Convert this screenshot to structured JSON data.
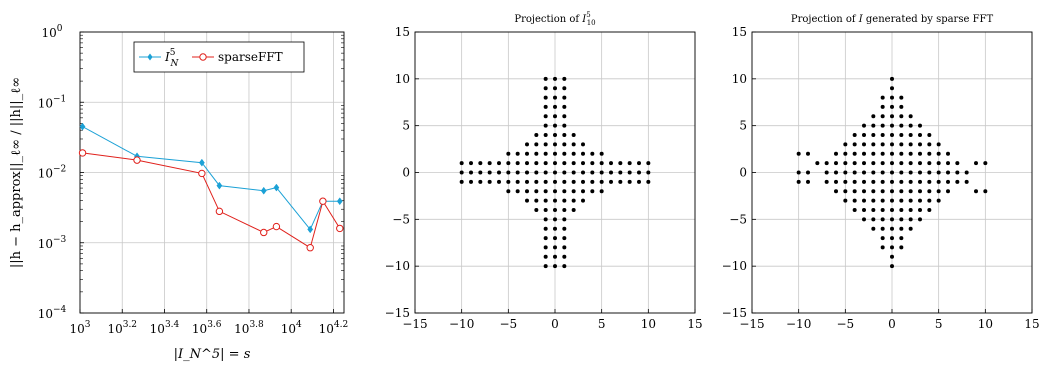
{
  "chart_data": [
    {
      "type": "line",
      "title": "",
      "xlabel": "|I_N^5| = s",
      "ylabel": "||h − h_approx||_ℓ∞ / ||h||_ℓ∞",
      "xscale": "log",
      "yscale": "log",
      "xlim": [
        1000,
        17783
      ],
      "ylim": [
        0.0001,
        1
      ],
      "xticks": [
        {
          "value": 1000,
          "base": "10",
          "exp": "3"
        },
        {
          "value": 1585,
          "base": "10",
          "exp": "3.2"
        },
        {
          "value": 2512,
          "base": "10",
          "exp": "3.4"
        },
        {
          "value": 3981,
          "base": "10",
          "exp": "3.6"
        },
        {
          "value": 6310,
          "base": "10",
          "exp": "3.8"
        },
        {
          "value": 10000,
          "base": "10",
          "exp": "4"
        },
        {
          "value": 15849,
          "base": "10",
          "exp": "4.2"
        }
      ],
      "yticks": [
        {
          "value": 0.0001,
          "base": "10",
          "exp": "−4"
        },
        {
          "value": 0.001,
          "base": "10",
          "exp": "−3"
        },
        {
          "value": 0.01,
          "base": "10",
          "exp": "−2"
        },
        {
          "value": 0.1,
          "base": "10",
          "exp": "−1"
        },
        {
          "value": 1,
          "base": "10",
          "exp": "0"
        }
      ],
      "grid": true,
      "legend_position": "top",
      "series": [
        {
          "name": "I_N^5",
          "color": "#1ba1d6",
          "marker": "diamond",
          "x": [
            1028,
            1862,
            3776,
            4571,
            7413,
            8511,
            12303,
            14125,
            16982
          ],
          "y": [
            0.045,
            0.017,
            0.0138,
            0.0065,
            0.0055,
            0.0061,
            0.00155,
            0.0039,
            0.0039
          ]
        },
        {
          "name": "sparseFFT",
          "color": "#e0201b",
          "marker": "circle",
          "x": [
            1028,
            1862,
            3776,
            4571,
            7413,
            8511,
            12303,
            14125,
            16982
          ],
          "y": [
            0.019,
            0.015,
            0.0097,
            0.0028,
            0.0014,
            0.0017,
            0.00085,
            0.0039,
            0.0016
          ]
        }
      ]
    },
    {
      "type": "scatter",
      "title": "Projection of I_10^5",
      "xlim": [
        -15,
        15
      ],
      "ylim": [
        -15,
        15
      ],
      "xticks": [
        -15,
        -10,
        -5,
        0,
        5,
        10,
        15
      ],
      "yticks": [
        -15,
        -10,
        -5,
        0,
        5,
        10,
        15
      ],
      "grid": true,
      "x_ranges_by_y": [
        {
          "y": [
            -10,
            -3
          ],
          "x": [
            -1,
            1
          ]
        },
        {
          "y": [
            -2,
            -2
          ],
          "x": [
            -5,
            5
          ]
        },
        {
          "y": [
            -1,
            1
          ],
          "x": [
            -10,
            10
          ]
        },
        {
          "y": [
            2,
            2
          ],
          "x": [
            -5,
            5
          ]
        },
        {
          "y": [
            3,
            10
          ],
          "x": [
            -1,
            1
          ]
        },
        {
          "y": [
            -4,
            4
          ],
          "x": [
            -3,
            3
          ],
          "note": "fill core diamond"
        }
      ]
    },
    {
      "type": "scatter",
      "title": "Projection of I generated by sparse FFT",
      "xlim": [
        -15,
        15
      ],
      "ylim": [
        -15,
        15
      ],
      "xticks": [
        -15,
        -10,
        -5,
        0,
        5,
        10,
        15
      ],
      "yticks": [
        -15,
        -10,
        -5,
        0,
        5,
        10,
        15
      ],
      "grid": true,
      "rows": [
        {
          "y": 10,
          "x": [
            0
          ]
        },
        {
          "y": 9,
          "x": [
            0
          ]
        },
        {
          "y": 8,
          "x": [
            -1,
            0,
            1
          ]
        },
        {
          "y": 7,
          "x": [
            -1,
            0,
            1
          ]
        },
        {
          "y": 6,
          "x": [
            -2,
            -1,
            0,
            1,
            2
          ]
        },
        {
          "y": 5,
          "x": [
            -3,
            -2,
            -1,
            0,
            1,
            2,
            3
          ]
        },
        {
          "y": 4,
          "x": [
            -4,
            -3,
            -2,
            -1,
            0,
            1,
            2,
            3,
            4
          ]
        },
        {
          "y": 3,
          "x": [
            -5,
            -4,
            -3,
            -2,
            -1,
            0,
            1,
            2,
            3,
            4,
            5
          ]
        },
        {
          "y": 2,
          "x": [
            -10,
            -9,
            -6,
            -5,
            -4,
            -3,
            -2,
            -1,
            0,
            1,
            2,
            3,
            4,
            5,
            6
          ]
        },
        {
          "y": 1,
          "x": [
            -8,
            -7,
            -6,
            -5,
            -4,
            -3,
            -2,
            -1,
            0,
            1,
            2,
            3,
            4,
            5,
            6,
            7,
            9,
            10
          ]
        },
        {
          "y": 0,
          "x": [
            -10,
            -9,
            -7,
            -6,
            -5,
            -4,
            -3,
            -2,
            -1,
            0,
            1,
            2,
            3,
            4,
            5,
            6,
            7,
            8
          ]
        },
        {
          "y": -1,
          "x": [
            -10,
            -9,
            -7,
            -6,
            -5,
            -4,
            -3,
            -2,
            -1,
            0,
            1,
            2,
            3,
            4,
            5,
            6,
            7,
            8
          ]
        },
        {
          "y": -2,
          "x": [
            -6,
            -5,
            -4,
            -3,
            -2,
            -1,
            0,
            1,
            2,
            3,
            4,
            5,
            6,
            9,
            10
          ]
        },
        {
          "y": -3,
          "x": [
            -5,
            -4,
            -3,
            -2,
            -1,
            0,
            1,
            2,
            3,
            4,
            5
          ]
        },
        {
          "y": -4,
          "x": [
            -4,
            -3,
            -2,
            -1,
            0,
            1,
            2,
            3,
            4
          ]
        },
        {
          "y": -5,
          "x": [
            -3,
            -2,
            -1,
            0,
            1,
            2,
            3
          ]
        },
        {
          "y": -6,
          "x": [
            -2,
            -1,
            0,
            1,
            2
          ]
        },
        {
          "y": -7,
          "x": [
            -1,
            0,
            1
          ]
        },
        {
          "y": -8,
          "x": [
            -1,
            0,
            1
          ]
        },
        {
          "y": -9,
          "x": [
            0
          ]
        },
        {
          "y": -10,
          "x": [
            0
          ]
        }
      ]
    }
  ]
}
